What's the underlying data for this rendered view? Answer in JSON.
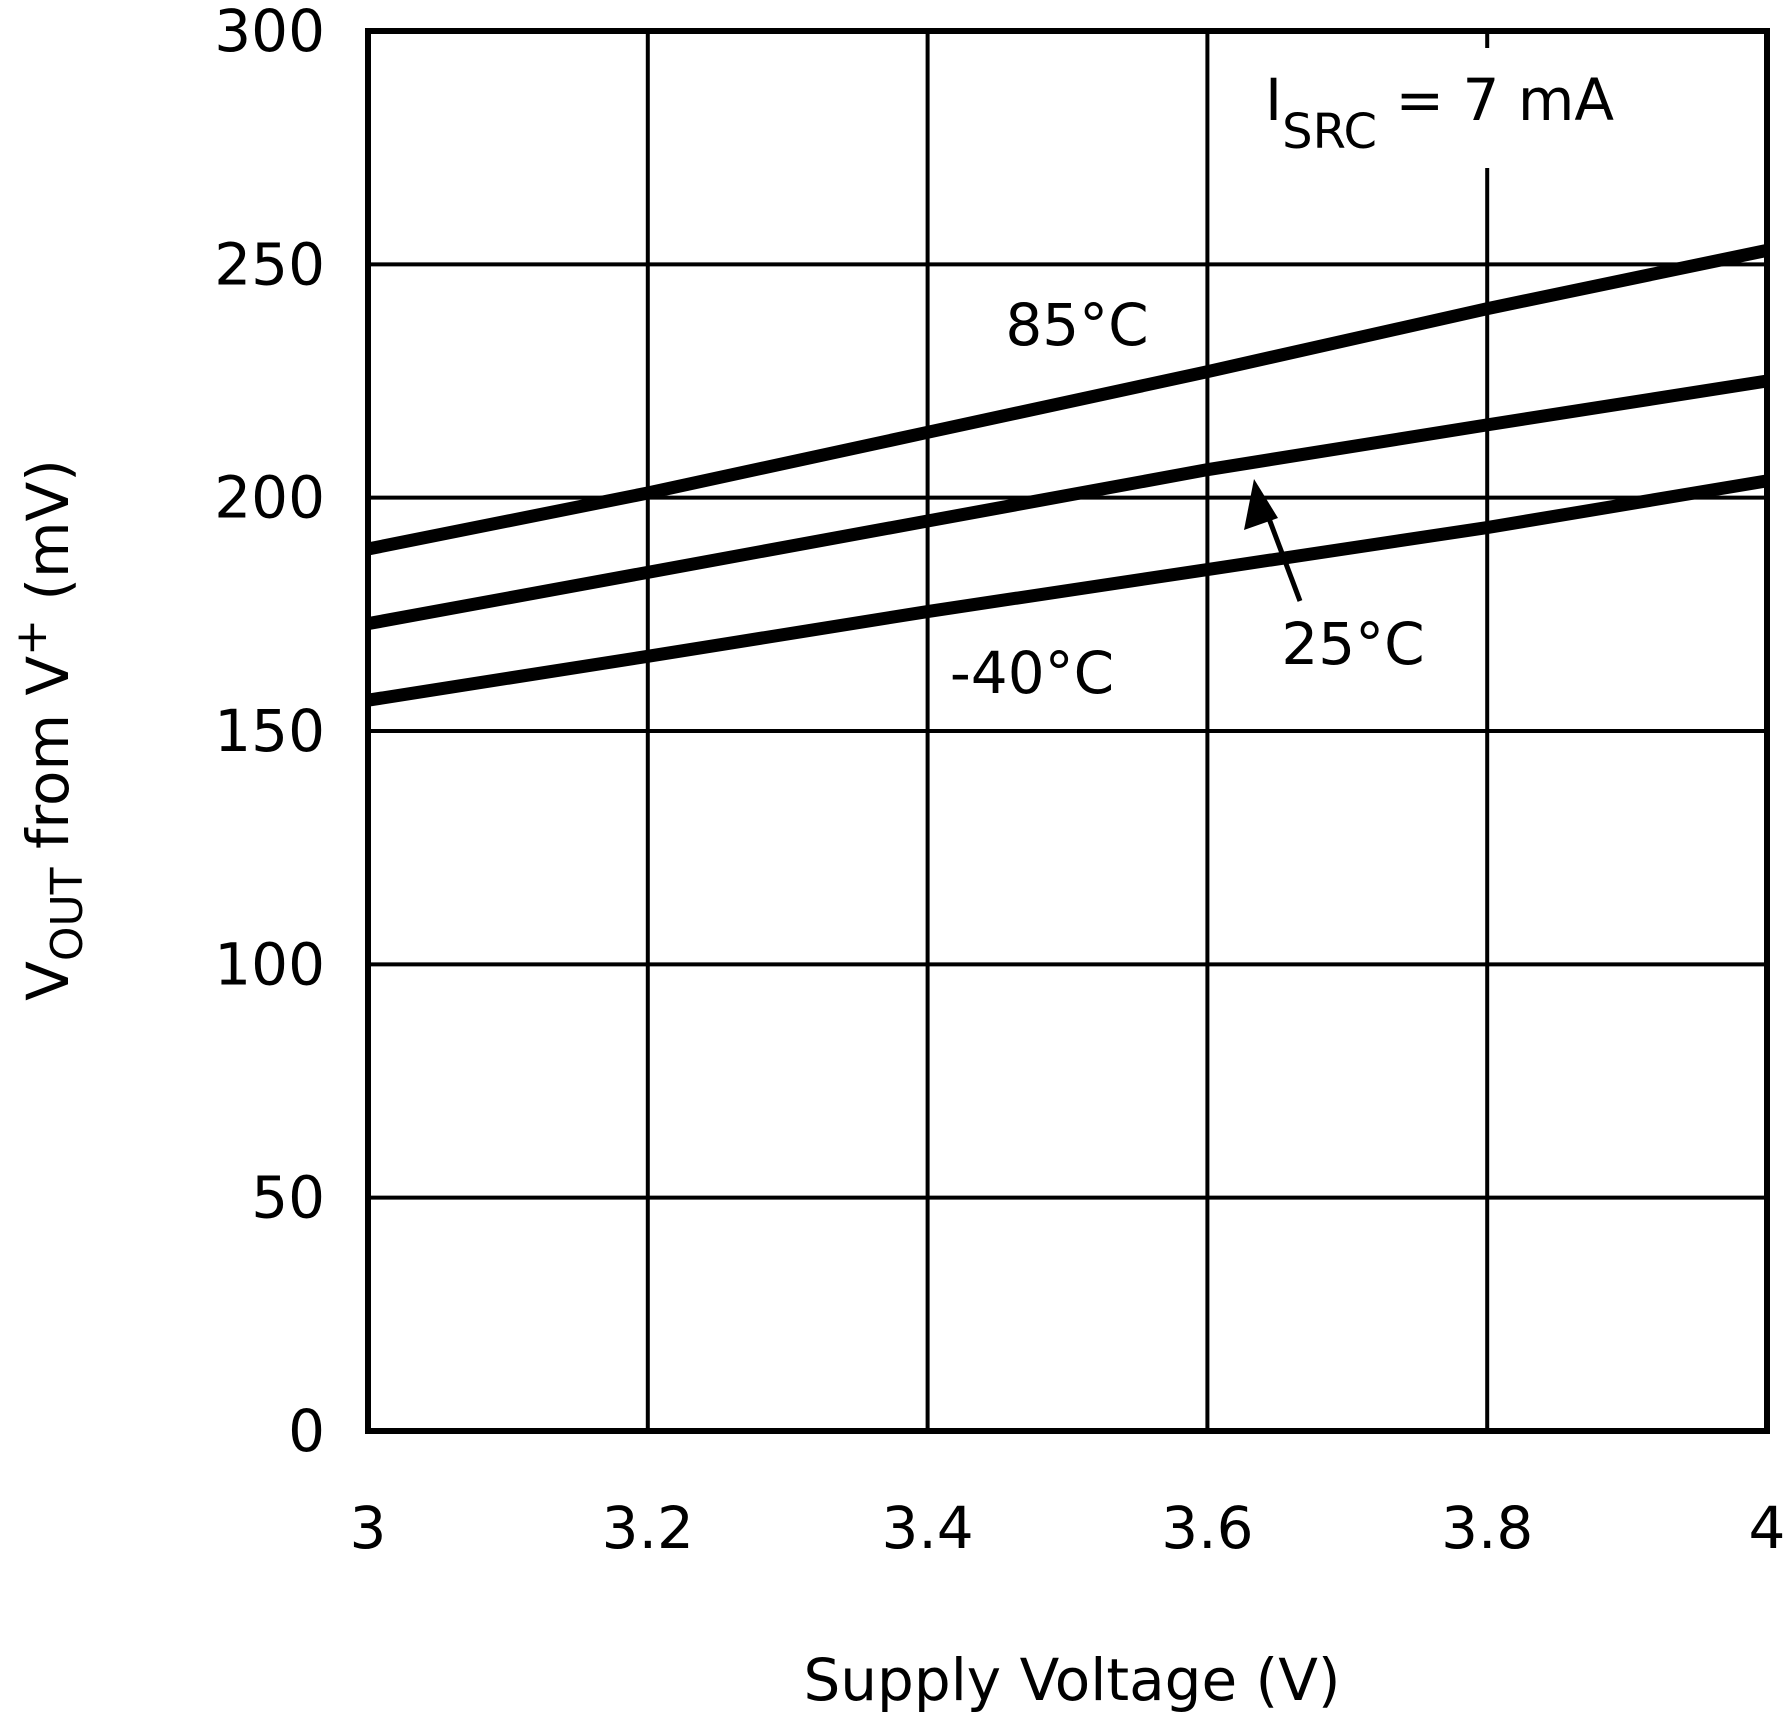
{
  "chart_data": {
    "type": "line",
    "x": [
      3,
      3.2,
      3.4,
      3.6,
      3.8,
      4
    ],
    "series": [
      {
        "name": "85°C",
        "color": "#000000",
        "values": [
          189,
          201,
          214,
          227,
          240.5,
          253
        ]
      },
      {
        "name": "25°C",
        "color": "#000000",
        "values": [
          173,
          184,
          195,
          206,
          215.6,
          225
        ]
      },
      {
        "name": "-40°C",
        "color": "#000000",
        "values": [
          156.6,
          166,
          175.6,
          184.6,
          193.6,
          203.6
        ]
      }
    ],
    "xlabel": "Supply Voltage (V)",
    "ylabel": {
      "main": "V",
      "sub": "OUT",
      "mid": " from V",
      "sup": "+",
      "end": " (mV)"
    },
    "annotation": {
      "main": "I",
      "sub": "SRC",
      "end": " = 7 mA"
    },
    "xlim": [
      3,
      4
    ],
    "xticks": [
      3,
      3.2,
      3.4,
      3.6,
      3.8,
      4
    ],
    "ylim": [
      0,
      300
    ],
    "yticks": [
      0,
      50,
      100,
      150,
      200,
      250,
      300
    ],
    "grid": true
  }
}
